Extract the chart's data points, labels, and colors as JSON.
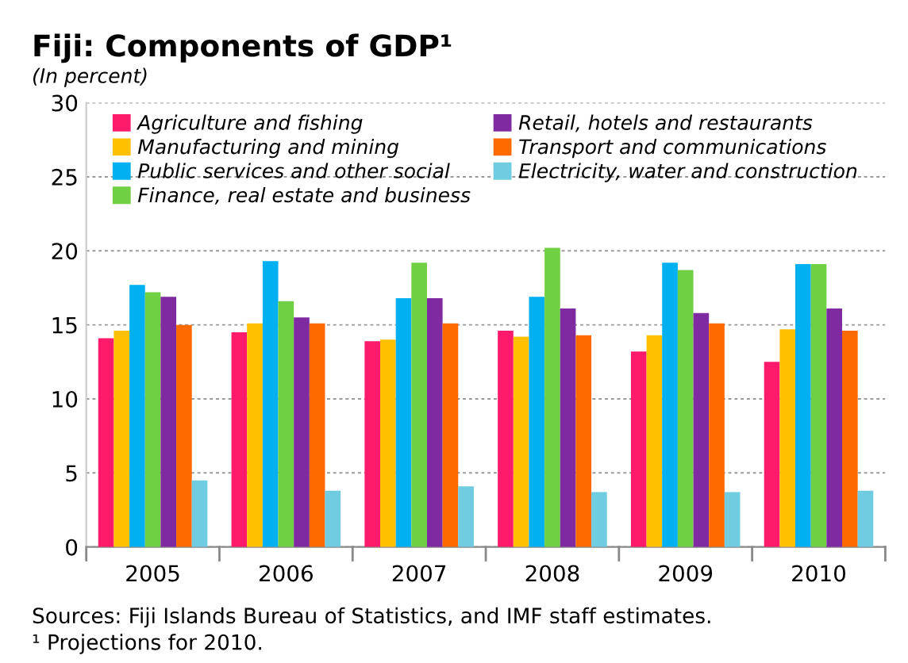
{
  "chart_data": {
    "type": "bar",
    "title": "Fiji: Components of GDP¹",
    "subtitle": "(In percent)",
    "categories": [
      "2005",
      "2006",
      "2007",
      "2008",
      "2009",
      "2010"
    ],
    "series": [
      {
        "name": "Agriculture and fishing",
        "color": "#ff1a6c",
        "values": [
          14.1,
          14.5,
          13.9,
          14.6,
          13.2,
          12.5
        ]
      },
      {
        "name": "Manufacturing and mining",
        "color": "#ffc000",
        "values": [
          14.6,
          15.1,
          14.0,
          14.2,
          14.3,
          14.7
        ]
      },
      {
        "name": "Public services and other social",
        "color": "#00b0f0",
        "values": [
          17.7,
          19.3,
          16.8,
          16.9,
          19.2,
          19.1
        ]
      },
      {
        "name": "Finance, real estate and business",
        "color": "#6fd043",
        "values": [
          17.2,
          16.6,
          19.2,
          20.2,
          18.7,
          19.1
        ]
      },
      {
        "name": "Retail, hotels and restaurants",
        "color": "#7f2aa0",
        "values": [
          16.9,
          15.5,
          16.8,
          16.1,
          15.8,
          16.1
        ]
      },
      {
        "name": "Transport and communications",
        "color": "#ff6a00",
        "values": [
          15.0,
          15.1,
          15.1,
          14.3,
          15.1,
          14.6
        ]
      },
      {
        "name": "Electricity, water and construction",
        "color": "#70cce0",
        "values": [
          4.5,
          3.8,
          4.1,
          3.7,
          3.7,
          3.8
        ]
      }
    ],
    "ylim": [
      0,
      30
    ],
    "yticks": [
      0,
      5,
      10,
      15,
      20,
      25,
      30
    ],
    "grid": "y",
    "legend": "top",
    "annotations": [
      "Sources: Fiji Islands Bureau of Statistics, and IMF staff estimates.",
      "¹ Projections for 2010."
    ]
  }
}
